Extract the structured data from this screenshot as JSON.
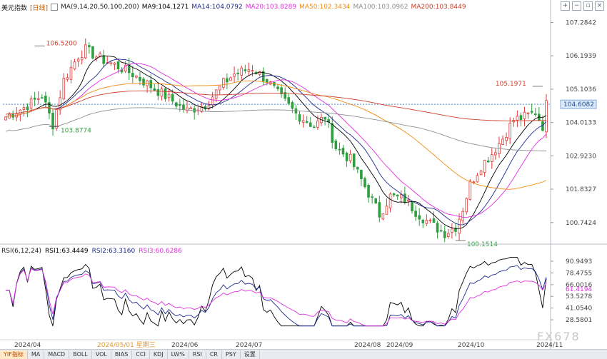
{
  "header": {
    "title": "美元指数",
    "period": "[日线]",
    "ma_group": "MA(9,14,20,50,100,200)",
    "ma9": "MA9:104.1271",
    "ma14": "MA14:104.0792",
    "ma20": "MA20:103.8289",
    "ma50": "MA50:102.3434",
    "ma100": "MA100:103.0962",
    "ma200": "MA200:103.8449"
  },
  "rsi_header": {
    "group": "RSI(6,12,24)",
    "rsi1": "RSI1:63.4449",
    "rsi2": "RSI2:63.3160",
    "rsi3": "RSI3:60.6286"
  },
  "colors": {
    "up": "#e23b3b",
    "down": "#2e9e3e",
    "ma9": "#000000",
    "ma14": "#1c2a8c",
    "ma20": "#e030e0",
    "ma50": "#f08c14",
    "ma100": "#909090",
    "ma200": "#d0402c",
    "rsi1": "#000000",
    "rsi2": "#1c2a8c",
    "rsi3": "#e030e0"
  },
  "chart_data": [
    {
      "type": "candlestick",
      "series_name": "美元指数",
      "price_ticks": [
        "107.2842",
        "106.1939",
        "105.1036",
        "104.0133",
        "102.9230",
        "101.8327",
        "100.7424"
      ],
      "ylim": [
        100.2,
        107.6
      ],
      "current_price": "104.6082",
      "date_labels": [
        "2024/04",
        "2024/06",
        "2024/07",
        "2024/08",
        "2024/09",
        "2024/10",
        "2024/11"
      ],
      "highlight_label": "2024/05/01 星期三",
      "annotations": [
        {
          "text": "106.5200",
          "value": 106.52,
          "kind": "high"
        },
        {
          "text": "103.8774",
          "value": 103.8774,
          "kind": "low"
        },
        {
          "text": "105.1971",
          "value": 105.1971,
          "kind": "high"
        },
        {
          "text": "100.1514",
          "value": 100.1514,
          "kind": "low"
        }
      ],
      "ma_last": {
        "MA9": 104.1271,
        "MA14": 104.0792,
        "MA20": 103.8289,
        "MA50": 102.3434,
        "MA100": 103.0962,
        "MA200": 103.8449
      },
      "grid": false
    },
    {
      "type": "line",
      "series_name": "RSI(6,12,24)",
      "rsi_ticks": [
        "90.9493",
        "78.4755",
        "66.0016",
        "53.5278",
        "41.0540",
        "28.5801"
      ],
      "ylim": [
        18,
        97
      ],
      "last_values": {
        "RSI1": 63.4449,
        "RSI2": 63.316,
        "RSI3": 60.6286
      },
      "current_label": "61.4194"
    }
  ],
  "tabs": [
    "YIF指标",
    "MA",
    "MACD",
    "BOLL",
    "VOL",
    "BIAS",
    "CCI",
    "KDJ",
    "LW%",
    "RSI",
    "CR",
    "PSY",
    "设置"
  ],
  "watermark": "FX678",
  "toolbar_icons": [
    "zoom-in-icon",
    "zoom-out-icon",
    "fullscreen-icon",
    "close-icon"
  ]
}
